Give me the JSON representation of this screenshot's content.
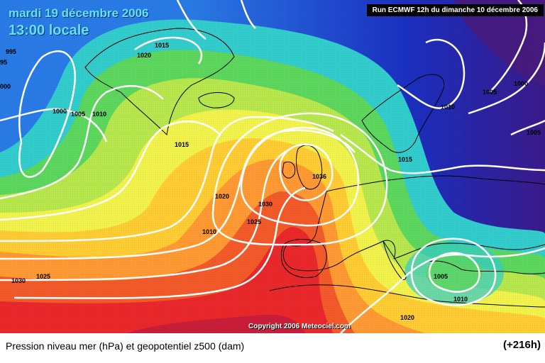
{
  "header": {
    "date": "mardi 19 décembre 2006",
    "time": "13:00 locale",
    "run": "Run ECMWF 12h du dimanche 10 décembre 2006"
  },
  "map": {
    "copyright": "Copyright 2006 Meteociel.com",
    "isobar_labels": [
      "995",
      "95",
      "000",
      "1000",
      "1005",
      "1010",
      "1015",
      "1020",
      "1015",
      "1020",
      "1010",
      "1025",
      "1030",
      "1036",
      "1015",
      "1010",
      "1005",
      "1000",
      "1005",
      "1005",
      "1010",
      "1020",
      "1025",
      "1030"
    ]
  },
  "footer": {
    "caption": "Pression niveau mer (hPa) et geopotentiel z500 (dam)",
    "lead_time": "(+216h)"
  },
  "colors": {
    "deep_blue": "#1a1aa8",
    "blue": "#1e5be0",
    "cyan": "#33cccc",
    "green": "#5cd65c",
    "yellow": "#f2f24d",
    "orange": "#ff9933",
    "red": "#e8282a",
    "isobar": "#ffffff",
    "land_outline": "#000000"
  }
}
